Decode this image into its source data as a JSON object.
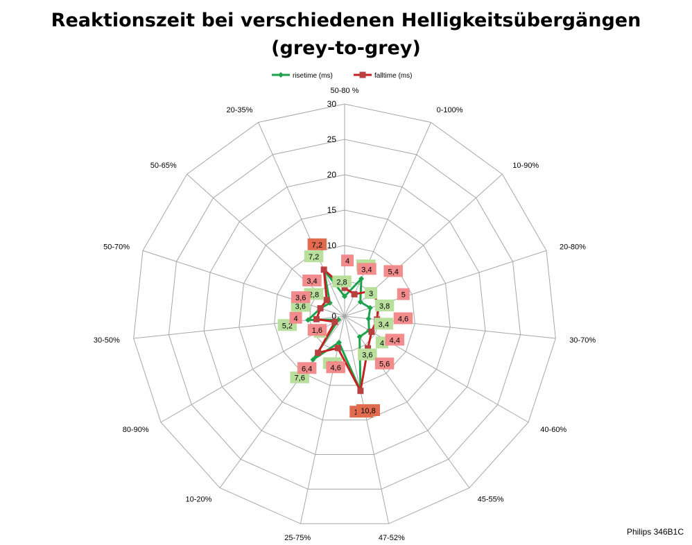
{
  "title_line1": "Reaktionszeit bei verschiedenen Helligkeitsübergängen",
  "title_line2": "(grey-to-grey)",
  "credit": "Philips 346B1C",
  "colors": {
    "risetime": "#1aa34a",
    "falltime": "#c42020",
    "rise_label_bg": "#b9df9c",
    "fall_label_bg": "#f28b8b",
    "max_label_bg": "#e06b4e",
    "grid": "#a6a6a6"
  },
  "chart_data": {
    "type": "radar",
    "title": "Reaktionszeit bei verschiedenen Helligkeitsübergängen (grey-to-grey)",
    "categories": [
      "50-80 %",
      "0-100%",
      "10-90%",
      "20-80%",
      "30-70%",
      "40-60%",
      "45-55%",
      "47-52%",
      "25-75%",
      "10-20%",
      "80-90%",
      "30-50%",
      "50-70%",
      "50-65%",
      "20-35%"
    ],
    "rlim": [
      0,
      30
    ],
    "ticks": [
      0,
      5,
      10,
      15,
      20,
      25,
      30
    ],
    "tick_labels": [
      "0",
      "5",
      "10",
      "15",
      "20",
      "25",
      "30"
    ],
    "grid": true,
    "legend_position": "top",
    "series": [
      {
        "name": "risetime (ms)",
        "marker": "diamond",
        "values": [
          2.8,
          5.8,
          3,
          3.8,
          3.4,
          4,
          3.6,
          10.8,
          3.8,
          7.6,
          1,
          5.2,
          3.6,
          2.8,
          7.2
        ],
        "labels": [
          "2,8",
          "5,8",
          "3",
          "3,8",
          "3,4",
          "4",
          "3,6",
          "10,8",
          "3,8",
          "7,6",
          "1",
          "5,2",
          "3,6",
          "2,8",
          "7,2"
        ]
      },
      {
        "name": "falltime (ms)",
        "marker": "square",
        "values": [
          4,
          3.4,
          5.4,
          5,
          4.6,
          4.4,
          5.6,
          10.8,
          4.6,
          6.4,
          1.6,
          4,
          3.6,
          3.4,
          7.2
        ],
        "labels": [
          "4",
          "3,4",
          "5,4",
          "5",
          "4,6",
          "4,4",
          "5,6",
          "10,8",
          "4,6",
          "6,4",
          "1,6",
          "4",
          "3,6",
          "3,4",
          "7,2"
        ]
      }
    ]
  }
}
